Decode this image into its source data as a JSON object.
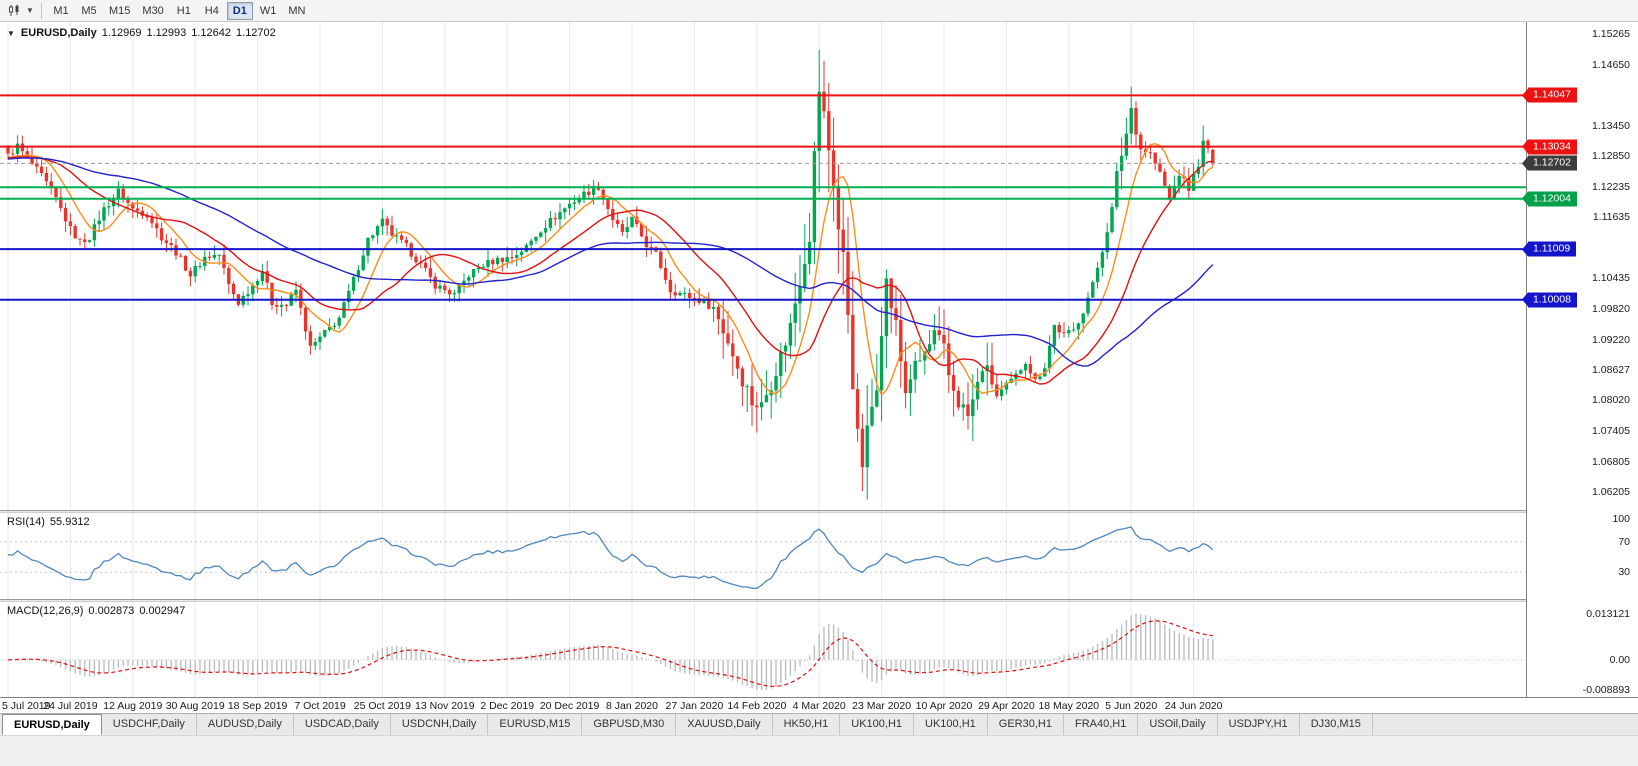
{
  "toolbar": {
    "timeframes": [
      "M1",
      "M5",
      "M15",
      "M30",
      "H1",
      "H4",
      "D1",
      "W1",
      "MN"
    ],
    "active_timeframe": "D1"
  },
  "chart": {
    "symbol_title": "EURUSD,Daily",
    "open": "1.12969",
    "high": "1.12993",
    "low": "1.12642",
    "close": "1.12702",
    "up_color": "#00a651",
    "down_color": "#e8352c",
    "grid_color": "#e9e9e9"
  },
  "levels": [
    {
      "price": 1.14047,
      "label": "1.14047",
      "color": "#ee1111",
      "flag": "#ee1111",
      "dashed": false
    },
    {
      "price": 1.13034,
      "label": "1.13034",
      "color": "#ee1111",
      "flag": "#ee1111",
      "dashed": false
    },
    {
      "price": 1.12702,
      "label": "1.12702",
      "color": "#9a9a9a",
      "flag": "#3c3c3c",
      "dashed": true
    },
    {
      "price": 1.1223,
      "label": "",
      "color": "#00b050",
      "flag": "#00b050",
      "dashed": false
    },
    {
      "price": 1.12004,
      "label": "1.12004",
      "color": "#00b050",
      "flag": "#00a048",
      "dashed": false
    },
    {
      "price": 1.11009,
      "label": "1.11009",
      "color": "#1414cc",
      "flag": "#1414cc",
      "dashed": false
    },
    {
      "price": 1.10008,
      "label": "1.10008",
      "color": "#1414cc",
      "flag": "#1414cc",
      "dashed": false
    }
  ],
  "price_axis": {
    "ticks": [
      "1.15265",
      "1.14650",
      "1.13450",
      "1.12850",
      "1.12235",
      "1.11635",
      "1.10435",
      "1.09820",
      "1.09220",
      "1.08627",
      "1.08020",
      "1.07405",
      "1.06805",
      "1.06205"
    ]
  },
  "chart_data": {
    "type": "candlestick",
    "symbol": "EURUSD",
    "timeframe": "Daily",
    "bar_count": 252,
    "y_range": [
      1.0605,
      1.153
    ],
    "bars_per_label": 13,
    "x_labels": [
      "5 Jul 2019",
      "24 Jul 2019",
      "12 Aug 2019",
      "30 Aug 2019",
      "18 Sep 2019",
      "7 Oct 2019",
      "25 Oct 2019",
      "13 Nov 2019",
      "2 Dec 2019",
      "20 Dec 2019",
      "8 Jan 2020",
      "27 Jan 2020",
      "14 Feb 2020",
      "4 Mar 2020",
      "23 Mar 2020",
      "10 Apr 2020",
      "29 Apr 2020",
      "18 May 2020",
      "5 Jun 2020",
      "24 Jun 2020"
    ],
    "close_anchors": [
      [
        0,
        1.1285
      ],
      [
        2,
        1.1305
      ],
      [
        4,
        1.128
      ],
      [
        7,
        1.1245
      ],
      [
        10,
        1.12
      ],
      [
        13,
        1.114
      ],
      [
        15,
        1.1115
      ],
      [
        17,
        1.1125
      ],
      [
        20,
        1.118
      ],
      [
        23,
        1.1215
      ],
      [
        26,
        1.118
      ],
      [
        29,
        1.117
      ],
      [
        32,
        1.1125
      ],
      [
        35,
        1.1095
      ],
      [
        38,
        1.105
      ],
      [
        41,
        1.1085
      ],
      [
        44,
        1.109
      ],
      [
        46,
        1.103
      ],
      [
        48,
        1.0995
      ],
      [
        51,
        1.103
      ],
      [
        53,
        1.106
      ],
      [
        55,
        1.0995
      ],
      [
        58,
        1.099
      ],
      [
        60,
        1.102
      ],
      [
        63,
        1.0905
      ],
      [
        66,
        1.0935
      ],
      [
        69,
        1.0965
      ],
      [
        72,
        1.104
      ],
      [
        75,
        1.112
      ],
      [
        78,
        1.1155
      ],
      [
        80,
        1.113
      ],
      [
        83,
        1.1105
      ],
      [
        86,
        1.107
      ],
      [
        89,
        1.103
      ],
      [
        93,
        1.101
      ],
      [
        96,
        1.105
      ],
      [
        99,
        1.107
      ],
      [
        102,
        1.108
      ],
      [
        105,
        1.1085
      ],
      [
        108,
        1.1105
      ],
      [
        111,
        1.114
      ],
      [
        114,
        1.1165
      ],
      [
        117,
        1.119
      ],
      [
        120,
        1.121
      ],
      [
        123,
        1.1225
      ],
      [
        126,
        1.116
      ],
      [
        128,
        1.113
      ],
      [
        130,
        1.116
      ],
      [
        133,
        1.111
      ],
      [
        135,
        1.109
      ],
      [
        138,
        1.102
      ],
      [
        141,
        1.101
      ],
      [
        144,
        1.1
      ],
      [
        147,
        1.0985
      ],
      [
        150,
        1.092
      ],
      [
        152,
        1.087
      ],
      [
        155,
        1.08
      ],
      [
        157,
        1.079
      ],
      [
        159,
        1.084
      ],
      [
        161,
        1.089
      ],
      [
        163,
        1.095
      ],
      [
        165,
        1.105
      ],
      [
        167,
        1.114
      ],
      [
        168,
        1.128
      ],
      [
        169,
        1.142
      ],
      [
        170,
        1.136
      ],
      [
        171,
        1.13
      ],
      [
        172,
        1.124
      ],
      [
        173,
        1.114
      ],
      [
        174,
        1.108
      ],
      [
        175,
        1.098
      ],
      [
        176,
        1.085
      ],
      [
        177,
        1.072
      ],
      [
        178,
        1.068
      ],
      [
        179,
        1.073
      ],
      [
        180,
        1.079
      ],
      [
        181,
        1.085
      ],
      [
        182,
        1.096
      ],
      [
        183,
        1.103
      ],
      [
        184,
        1.099
      ],
      [
        185,
        1.095
      ],
      [
        186,
        1.088
      ],
      [
        187,
        1.082
      ],
      [
        188,
        1.085
      ],
      [
        190,
        1.088
      ],
      [
        192,
        1.091
      ],
      [
        193,
        1.093
      ],
      [
        195,
        1.09
      ],
      [
        196,
        1.085
      ],
      [
        198,
        1.08
      ],
      [
        200,
        1.077
      ],
      [
        202,
        1.083
      ],
      [
        203,
        1.087
      ],
      [
        205,
        1.084
      ],
      [
        206,
        1.081
      ],
      [
        208,
        1.083
      ],
      [
        210,
        1.085
      ],
      [
        212,
        1.088
      ],
      [
        214,
        1.084
      ],
      [
        216,
        1.087
      ],
      [
        218,
        1.095
      ],
      [
        220,
        1.093
      ],
      [
        222,
        1.094
      ],
      [
        224,
        1.098
      ],
      [
        226,
        1.103
      ],
      [
        228,
        1.11
      ],
      [
        230,
        1.118
      ],
      [
        231,
        1.125
      ],
      [
        233,
        1.133
      ],
      [
        234,
        1.138
      ],
      [
        235,
        1.134
      ],
      [
        236,
        1.13
      ],
      [
        238,
        1.129
      ],
      [
        240,
        1.125
      ],
      [
        242,
        1.12
      ],
      [
        244,
        1.125
      ],
      [
        246,
        1.122
      ],
      [
        248,
        1.127
      ],
      [
        249,
        1.131
      ],
      [
        250,
        1.1297
      ],
      [
        251,
        1.12702
      ]
    ],
    "volatility": {
      "base": 0.003,
      "zones": [
        [
          147,
          205,
          0.0075
        ],
        [
          164,
          183,
          0.0125
        ],
        [
          232,
          236,
          0.0055
        ]
      ]
    },
    "spikes": [
      {
        "i": 169,
        "high": 1.1495
      },
      {
        "i": 178,
        "low": 1.0636
      },
      {
        "i": 234,
        "high": 1.1422
      },
      {
        "i": 249,
        "high": 1.1345
      }
    ],
    "last_bar": {
      "open": 1.12969,
      "high": 1.12993,
      "low": 1.12642,
      "close": 1.12702
    },
    "moving_averages": [
      {
        "period": 8,
        "color": "#ff8c1a"
      },
      {
        "period": 20,
        "color": "#e01010"
      },
      {
        "period": 50,
        "color": "#2222cc"
      }
    ]
  },
  "rsi": {
    "label": "RSI(14)",
    "value": "55.9312",
    "color": "#4f86c0",
    "axis_ticks": [
      100,
      70,
      30
    ]
  },
  "macd": {
    "label": "MACD(12,26,9)",
    "value1": "0.002873",
    "value2": "0.002947",
    "axis_top": "0.013121",
    "axis_zero": "0.00",
    "axis_bottom": "-0.008893",
    "hist_color": "#bdbdbd",
    "signal_color": "#e01010"
  },
  "tabs": {
    "items": [
      "EURUSD,Daily",
      "USDCHF,Daily",
      "AUDUSD,Daily",
      "USDCAD,Daily",
      "USDCNH,Daily",
      "EURUSD,M15",
      "GBPUSD,M30",
      "XAUUSD,Daily",
      "HK50,H1",
      "UK100,H1",
      "UK100,H1",
      "GER30,H1",
      "FRA40,H1",
      "USOil,Daily",
      "USDJPY,H1",
      "DJ30,M15"
    ],
    "active_index": 0
  }
}
